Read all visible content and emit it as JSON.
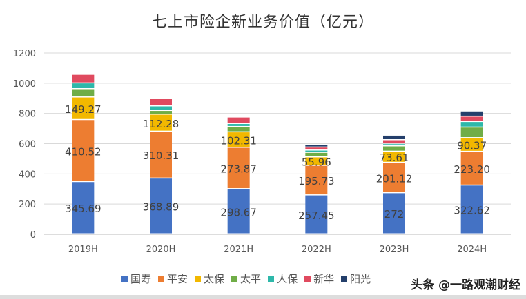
{
  "chart_data": {
    "type": "bar",
    "stacked": true,
    "title": "七上市险企新业务价值（亿元）",
    "xlabel": "",
    "ylabel": "",
    "ylim": [
      0,
      1200
    ],
    "yticks": [
      0,
      200,
      400,
      600,
      800,
      1000,
      1200
    ],
    "grid": true,
    "legend_position": "bottom",
    "categories": [
      "2019H",
      "2020H",
      "2021H",
      "2022H",
      "2023H",
      "2024H"
    ],
    "series": [
      {
        "name": "国寿",
        "color": "#4472C4",
        "labeled": true,
        "values": [
          345.69,
          368.89,
          298.67,
          257.45,
          272,
          322.62
        ],
        "labels": [
          "345.69",
          "368.89",
          "298.67",
          "257.45",
          "272",
          "322.62"
        ]
      },
      {
        "name": "平安",
        "color": "#ED7D31",
        "labeled": true,
        "values": [
          410.52,
          310.31,
          273.87,
          195.73,
          201.12,
          223.2
        ],
        "labels": [
          "410.52",
          "310.31",
          "273.87",
          "195.73",
          "201.12",
          "223.20"
        ]
      },
      {
        "name": "太保",
        "color": "#F2B800",
        "labeled": true,
        "values": [
          149.27,
          112.28,
          102.31,
          55.96,
          73.61,
          90.37
        ],
        "labels": [
          "149.27",
          "112.28",
          "102.31",
          "55.96",
          "73.61",
          "90.37"
        ]
      },
      {
        "name": "太平",
        "color": "#70AD47",
        "labeled": false,
        "values": [
          55,
          25,
          35,
          30,
          35,
          70
        ]
      },
      {
        "name": "人保",
        "color": "#2EB8AA",
        "labeled": false,
        "values": [
          38,
          30,
          20,
          15,
          15,
          37
        ]
      },
      {
        "name": "新华",
        "color": "#E04A5F",
        "labeled": false,
        "values": [
          57,
          50,
          43,
          20,
          26,
          35
        ]
      },
      {
        "name": "阳光",
        "color": "#243F6B",
        "labeled": false,
        "values": [
          0,
          0,
          0,
          15,
          30,
          35
        ]
      }
    ]
  },
  "watermark": "头条 @一路观潮财经"
}
